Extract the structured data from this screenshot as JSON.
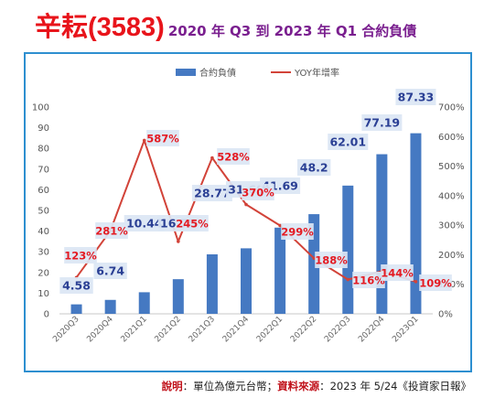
{
  "title": {
    "main": "辛耘(3583)",
    "sub": "2020 年 Q3 到 2023 年 Q1 合約負債"
  },
  "footnote": {
    "label1": "說明",
    "text1": "：單位為億元台幣；",
    "label2": "資料來源",
    "text2": "：2023 年 5/24《投資家日報》"
  },
  "colors": {
    "bar": "#4579c2",
    "line": "#d24339",
    "frame": "#2d8fd0",
    "title": "#e8141b",
    "subtitle": "#7a1f8f",
    "bar_label": "#2a3f94",
    "pct_label": "#e41b23",
    "label_bg": "#dbe6f4"
  },
  "chart_data": {
    "type": "bar",
    "categories": [
      "2020Q3",
      "2020Q4",
      "2021Q1",
      "2021Q2",
      "2021Q3",
      "2021Q4",
      "2022Q1",
      "2022Q2",
      "2022Q3",
      "2022Q4",
      "2023Q1"
    ],
    "series": [
      {
        "name": "合約負債",
        "type": "bar",
        "axis": "left",
        "values": [
          4.58,
          6.74,
          10.44,
          16.75,
          28.77,
          31.68,
          41.69,
          48.2,
          62.01,
          77.19,
          87.33
        ],
        "labels": [
          "4.58",
          "6.74",
          "10.44",
          "16.75",
          "28.77",
          "31.68",
          "41.69",
          "48.2",
          "62.01",
          "77.19",
          "87.33"
        ]
      },
      {
        "name": "YOY年增率",
        "type": "line",
        "axis": "right",
        "values": [
          123,
          281,
          587,
          245,
          528,
          370,
          299,
          188,
          116,
          144,
          109
        ],
        "labels": [
          "123%",
          "281%",
          "587%",
          "245%",
          "528%",
          "370%",
          "299%",
          "188%",
          "116%",
          "144%",
          "109%"
        ]
      }
    ],
    "y_left": {
      "min": 0,
      "max": 100,
      "step": 10
    },
    "y_right": {
      "min": 0,
      "max": 700,
      "step": 100,
      "tick_suffix": "%"
    },
    "legend_position": "top-center",
    "grid": false
  }
}
